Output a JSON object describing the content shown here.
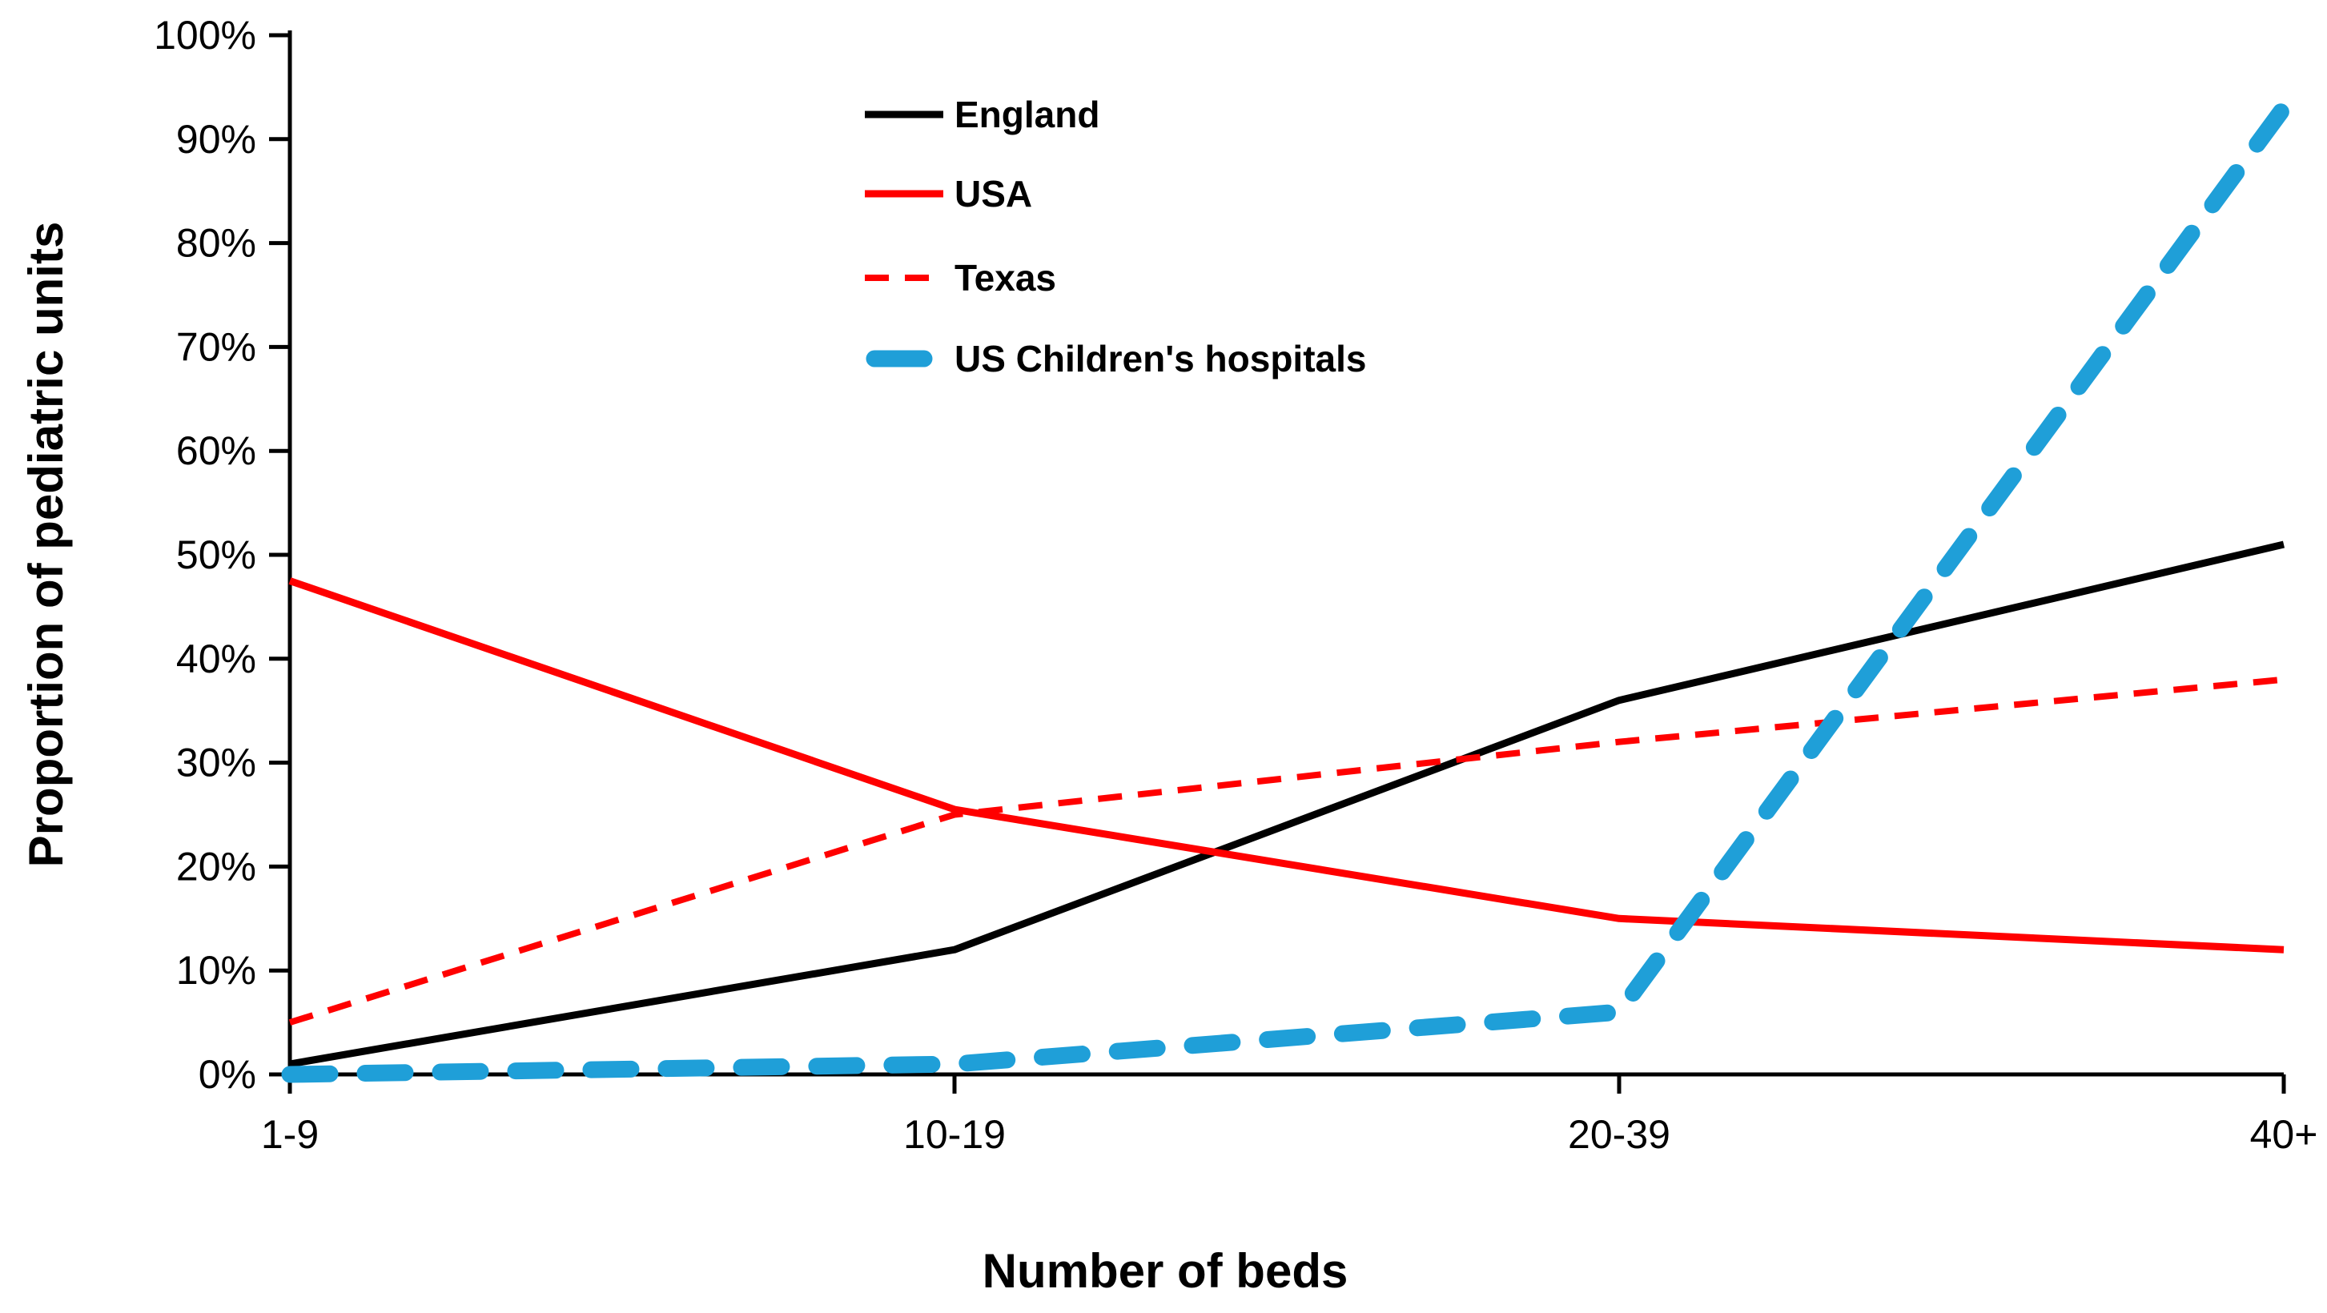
{
  "chart_data": {
    "type": "line",
    "title": "",
    "xlabel": "Number of beds",
    "ylabel": "Proportion of pediatric units",
    "categories": [
      "1-9",
      "10-19",
      "20-39",
      "40+"
    ],
    "y_tick_labels": [
      "0%",
      "10%",
      "20%",
      "30%",
      "40%",
      "50%",
      "60%",
      "70%",
      "80%",
      "90%",
      "100%"
    ],
    "ylim": [
      0,
      100
    ],
    "grid": false,
    "legend_position": "top-center-inside",
    "series": [
      {
        "name": "England",
        "color": "#000000",
        "line_style": "solid",
        "values": [
          1,
          12,
          36,
          51
        ]
      },
      {
        "name": "USA",
        "color": "#FF0000",
        "line_style": "solid",
        "values": [
          47.5,
          25.5,
          15,
          12
        ]
      },
      {
        "name": "Texas",
        "color": "#FF0000",
        "line_style": "dashed",
        "values": [
          5,
          25,
          32,
          38
        ]
      },
      {
        "name": "US Children's hospitals",
        "color": "#1F9FD8",
        "line_style": "thick-dashed",
        "values": [
          0,
          1,
          6,
          93
        ]
      }
    ]
  }
}
